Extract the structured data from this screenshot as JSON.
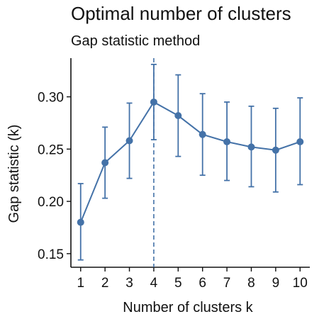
{
  "chart_data": {
    "type": "line",
    "title": "Optimal number of clusters",
    "subtitle": "Gap statistic method",
    "xlabel": "Number of clusters k",
    "ylabel": "Gap statistic (k)",
    "x": [
      1,
      2,
      3,
      4,
      5,
      6,
      7,
      8,
      9,
      10
    ],
    "series": [
      {
        "values": [
          0.18,
          0.237,
          0.258,
          0.295,
          0.282,
          0.264,
          0.257,
          0.252,
          0.249,
          0.257
        ],
        "error_low": [
          0.144,
          0.203,
          0.222,
          0.259,
          0.243,
          0.225,
          0.22,
          0.214,
          0.209,
          0.216
        ],
        "error_high": [
          0.217,
          0.271,
          0.294,
          0.331,
          0.321,
          0.303,
          0.295,
          0.291,
          0.289,
          0.299
        ]
      }
    ],
    "optimal_k": 4,
    "ylim": [
      0.137,
      0.337
    ],
    "xlim": [
      0.6,
      10.4
    ],
    "yticks": [
      0.15,
      0.2,
      0.25,
      0.3
    ],
    "ytick_labels": [
      "0.15",
      "0.20",
      "0.25",
      "0.30"
    ],
    "xticks": [
      1,
      2,
      3,
      4,
      5,
      6,
      7,
      8,
      9,
      10
    ],
    "grid": false,
    "color": "#4472a8"
  }
}
